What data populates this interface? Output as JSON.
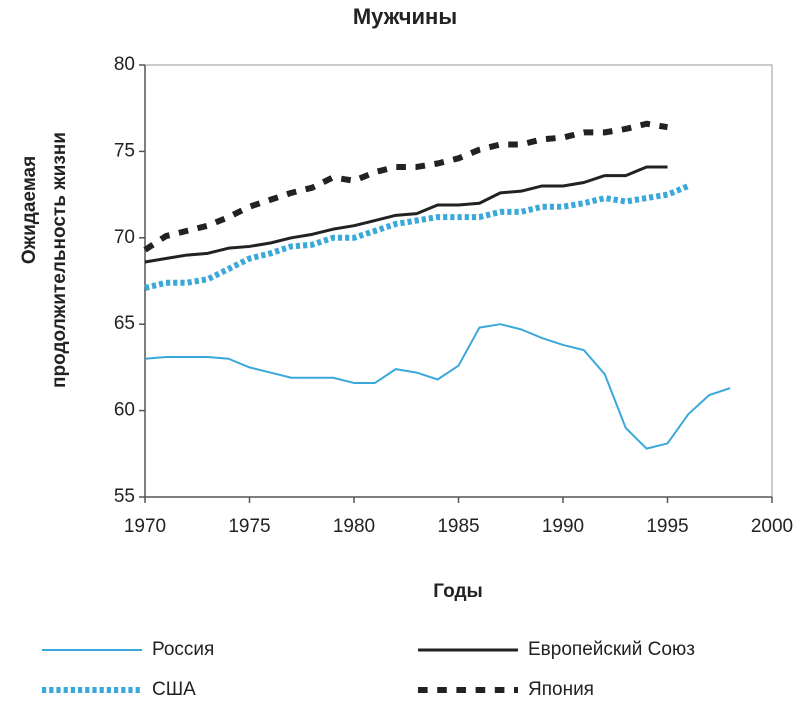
{
  "chart_data": {
    "type": "line",
    "title": "Мужчины",
    "xlabel": "Годы",
    "ylabel": [
      "Ожидаемая",
      "продолжительность жизни"
    ],
    "x": [
      1970,
      1971,
      1972,
      1973,
      1974,
      1975,
      1976,
      1977,
      1978,
      1979,
      1980,
      1981,
      1982,
      1983,
      1984,
      1985,
      1986,
      1987,
      1988,
      1989,
      1990,
      1991,
      1992,
      1993,
      1994,
      1995,
      1996,
      1997,
      1998
    ],
    "xlim": [
      1970,
      2000
    ],
    "xticks": [
      1970,
      1975,
      1980,
      1985,
      1990,
      1995,
      2000
    ],
    "ylim": [
      55,
      80
    ],
    "yticks": [
      55,
      60,
      65,
      70,
      75,
      80
    ],
    "series": [
      {
        "name": "Россия",
        "color": "#3aa8d8",
        "linestyle": "solid",
        "width": 2,
        "values": [
          63.0,
          63.1,
          63.1,
          63.1,
          63.0,
          62.5,
          62.2,
          61.9,
          61.9,
          61.9,
          61.6,
          61.6,
          62.4,
          62.2,
          61.8,
          62.6,
          64.8,
          65.0,
          64.7,
          64.2,
          63.8,
          63.5,
          62.1,
          59.0,
          57.8,
          58.1,
          59.8,
          60.9,
          61.3
        ]
      },
      {
        "name": "Европейский Союз",
        "color": "#222222",
        "linestyle": "solid",
        "width": 3,
        "values": [
          68.6,
          68.8,
          69.0,
          69.1,
          69.4,
          69.5,
          69.7,
          70.0,
          70.2,
          70.5,
          70.7,
          71.0,
          71.3,
          71.4,
          71.9,
          71.9,
          72.0,
          72.6,
          72.7,
          73.0,
          73.0,
          73.2,
          73.6,
          73.6,
          74.1,
          74.1,
          null,
          null,
          null
        ]
      },
      {
        "name": "США",
        "color": "#3aa8d8",
        "linestyle": "dotted",
        "width": 6,
        "values": [
          67.1,
          67.4,
          67.4,
          67.6,
          68.2,
          68.8,
          69.1,
          69.5,
          69.6,
          70.0,
          70.0,
          70.4,
          70.8,
          71.0,
          71.2,
          71.2,
          71.2,
          71.5,
          71.5,
          71.8,
          71.8,
          72.0,
          72.3,
          72.1,
          72.3,
          72.5,
          73.0,
          null,
          null
        ]
      },
      {
        "name": "Япония",
        "color": "#222222",
        "linestyle": "dashed",
        "width": 6,
        "values": [
          69.3,
          70.1,
          70.4,
          70.7,
          71.2,
          71.8,
          72.2,
          72.6,
          72.9,
          73.5,
          73.3,
          73.8,
          74.1,
          74.1,
          74.3,
          74.6,
          75.1,
          75.4,
          75.4,
          75.7,
          75.8,
          76.1,
          76.1,
          76.3,
          76.6,
          76.4,
          null,
          null,
          null
        ]
      }
    ]
  }
}
